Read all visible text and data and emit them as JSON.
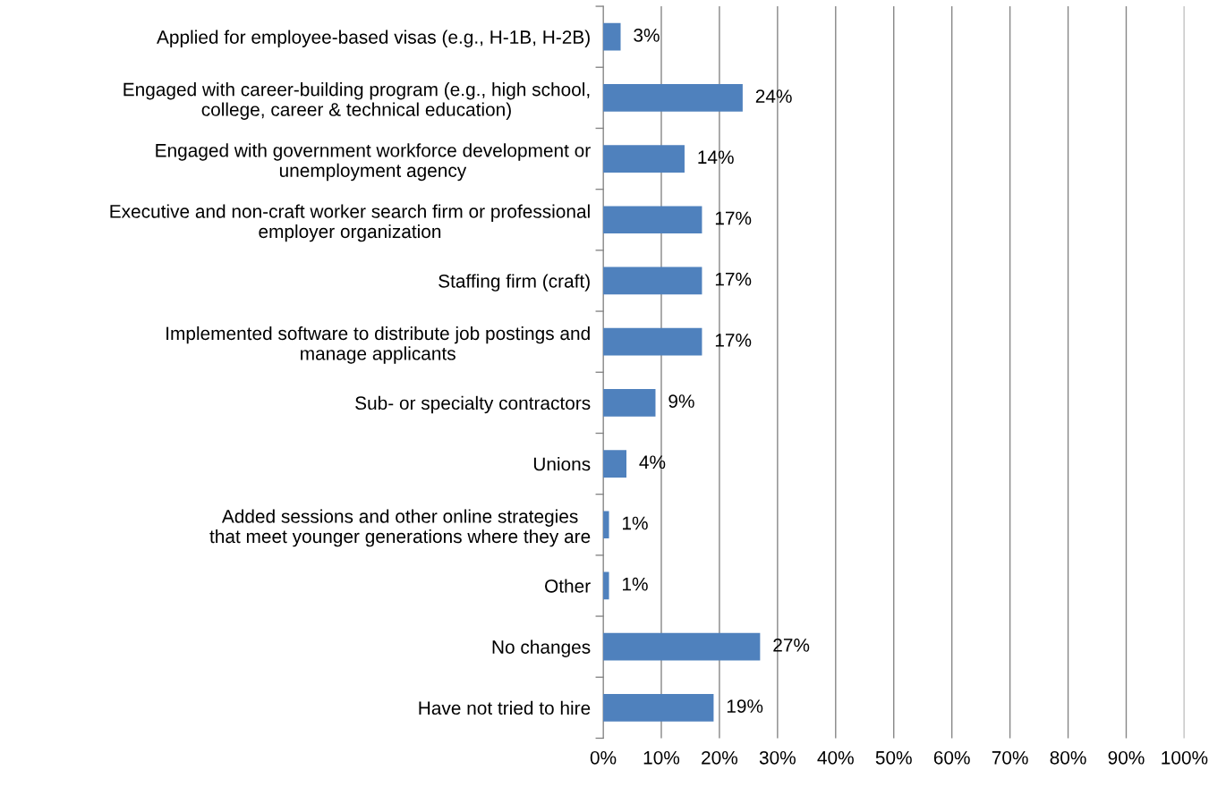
{
  "chart_data": {
    "type": "bar",
    "orientation": "horizontal",
    "categories": [
      "Applied for employee-based visas (e.g., H-1B, H-2B)",
      "Engaged with career-building program (e.g., high school,\ncollege, career & technical education)",
      "Engaged with government workforce development or\nunemployment agency",
      "Executive and non-craft worker search firm or professional\nemployer organization",
      "Staffing firm (craft)",
      "Implemented software to distribute job postings and\nmanage applicants",
      "Sub- or specialty contractors",
      "Unions",
      "Added sessions and other online strategies\nthat meet younger generations where they are",
      "Other",
      "No changes",
      "Have not tried to hire"
    ],
    "values": [
      3,
      24,
      14,
      17,
      17,
      17,
      9,
      4,
      1,
      1,
      27,
      19
    ],
    "value_labels": [
      "3%",
      "24%",
      "14%",
      "17%",
      "17%",
      "17%",
      "9%",
      "4%",
      "1%",
      "1%",
      "27%",
      "19%"
    ],
    "color": "#4f81bd",
    "xlim": [
      0,
      100
    ],
    "xticks": [
      {
        "value": 0,
        "label": "0%"
      },
      {
        "value": 10,
        "label": "10%"
      },
      {
        "value": 20,
        "label": "20%"
      },
      {
        "value": 30,
        "label": "30%"
      },
      {
        "value": 40,
        "label": "40%"
      },
      {
        "value": 50,
        "label": "50%"
      },
      {
        "value": 60,
        "label": "60%"
      },
      {
        "value": 70,
        "label": "70%"
      },
      {
        "value": 80,
        "label": "80%"
      },
      {
        "value": 90,
        "label": "90%"
      },
      {
        "value": 100,
        "label": "100%"
      }
    ],
    "grid": "x"
  }
}
